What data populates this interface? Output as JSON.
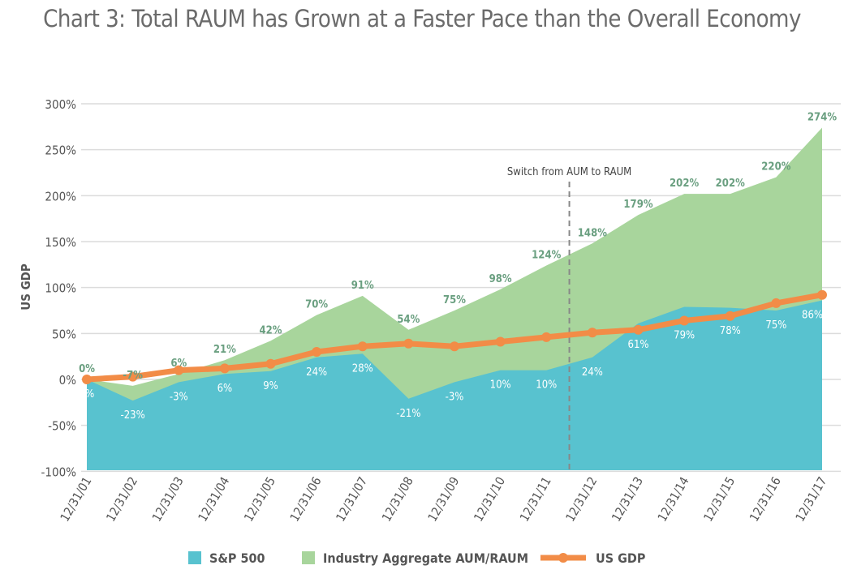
{
  "chart_data": {
    "type": "area",
    "title": "Chart 3: Total RAUM has Grown at a Faster Pace than the Overall Economy",
    "ylabel": "US GDP",
    "xlabel": "",
    "ylim": [
      -100,
      300
    ],
    "yticks": [
      -100,
      -50,
      0,
      50,
      100,
      150,
      200,
      250,
      300
    ],
    "ytick_labels": [
      "-100%",
      "-50%",
      "0%",
      "50%",
      "100%",
      "150%",
      "200%",
      "250%",
      "300%"
    ],
    "grid": true,
    "legend_position": "bottom",
    "categories": [
      "12/31/01",
      "12/31/02",
      "12/31/03",
      "12/31/04",
      "12/31/05",
      "12/31/06",
      "12/31/07",
      "12/31/08",
      "12/31/09",
      "12/31/10",
      "12/31/11",
      "12/31/12",
      "12/31/13",
      "12/31/14",
      "12/31/15",
      "12/31/16",
      "12/31/17"
    ],
    "series": [
      {
        "name": "Industry Aggregate AUM/RAUM",
        "kind": "area",
        "color": "#a8d59c",
        "label_color": "#6a9f80",
        "values": [
          0,
          -7,
          6,
          21,
          42,
          70,
          91,
          54,
          75,
          98,
          124,
          148,
          179,
          202,
          202,
          220,
          274
        ],
        "labels": [
          "0%",
          "-7%",
          "6%",
          "21%",
          "42%",
          "70%",
          "91%",
          "54%",
          "75%",
          "98%",
          "124%",
          "148%",
          "179%",
          "202%",
          "202%",
          "220%",
          "274%"
        ]
      },
      {
        "name": "S&P 500",
        "kind": "area",
        "color": "#58c2cf",
        "label_color": "#ffffff",
        "values": [
          0,
          -23,
          -3,
          6,
          9,
          24,
          28,
          -21,
          -3,
          10,
          10,
          24,
          61,
          79,
          78,
          75,
          86
        ],
        "labels": [
          "0%",
          "-23%",
          "-3%",
          "6%",
          "9%",
          "24%",
          "28%",
          "-21%",
          "-3%",
          "10%",
          "10%",
          "24%",
          "61%",
          "79%",
          "78%",
          "75%",
          "86%"
        ]
      },
      {
        "name": "US GDP",
        "kind": "line",
        "color": "#f28c47",
        "values": [
          0,
          3,
          10,
          12,
          17,
          30,
          36,
          39,
          36,
          41,
          46,
          51,
          54,
          64,
          69,
          83,
          92
        ]
      }
    ],
    "annotations": [
      {
        "text": "Switch from AUM to RAUM",
        "between": [
          "12/31/11",
          "12/31/12"
        ]
      }
    ]
  }
}
